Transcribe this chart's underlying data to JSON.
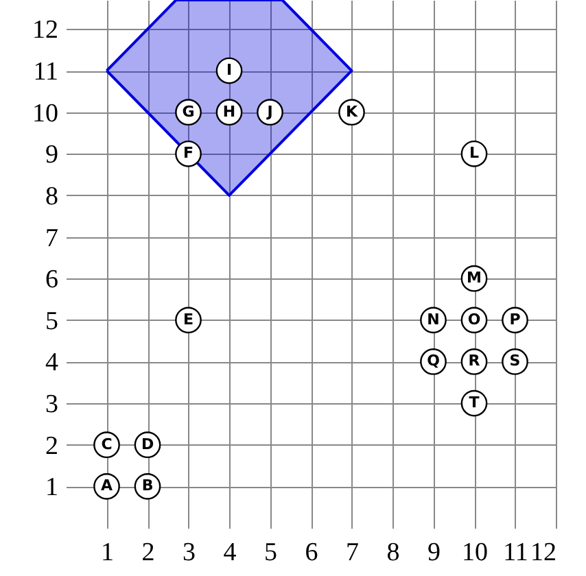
{
  "chart_data": {
    "type": "scatter",
    "xlim": [
      0,
      12
    ],
    "ylim": [
      0,
      12.7
    ],
    "xticks": [
      1,
      2,
      3,
      4,
      5,
      6,
      7,
      8,
      9,
      10,
      11,
      12
    ],
    "yticks": [
      1,
      2,
      3,
      4,
      5,
      6,
      7,
      8,
      9,
      10,
      11,
      12
    ],
    "grid": true,
    "series": [
      {
        "type": "area",
        "color": "#0000dd",
        "x": [
          1,
          4,
          7,
          5.3,
          2.7,
          1
        ],
        "values": [
          11,
          8,
          11,
          12.7,
          12.7,
          11
        ]
      },
      {
        "color": "#000000",
        "marker": "circle",
        "x": [
          1,
          2,
          1,
          2,
          3,
          3,
          3,
          4,
          4,
          5,
          7,
          10,
          10,
          9,
          10,
          11,
          9,
          10,
          11,
          10
        ],
        "values": [
          1,
          1,
          2,
          2,
          5,
          9,
          10,
          10,
          11,
          10,
          10,
          9,
          6,
          5,
          5,
          5,
          4,
          4,
          4,
          3
        ],
        "value_labels": [
          "A",
          "B",
          "C",
          "D",
          "E",
          "F",
          "G",
          "H",
          "I",
          "J",
          "K",
          "L",
          "M",
          "N",
          "O",
          "P",
          "Q",
          "R",
          "S",
          "T"
        ]
      }
    ]
  }
}
